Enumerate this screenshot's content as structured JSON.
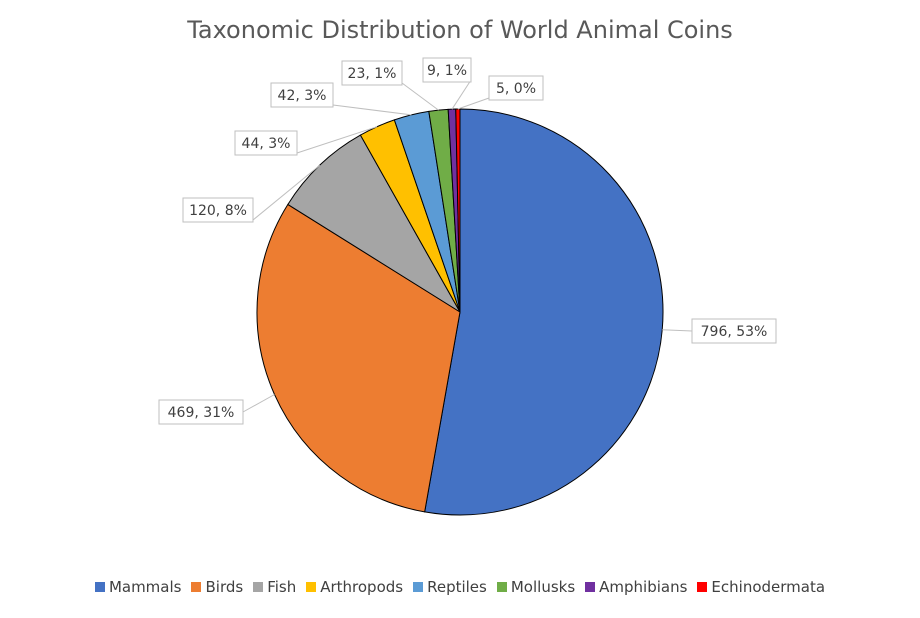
{
  "chart_data": {
    "type": "pie",
    "title": "Taxonomic Distribution of World Animal Coins",
    "legend_position": "bottom",
    "slices": [
      {
        "label": "Mammals",
        "value": 796,
        "percent": "53%",
        "color": "#4472C4"
      },
      {
        "label": "Birds",
        "value": 469,
        "percent": "31%",
        "color": "#ED7D31"
      },
      {
        "label": "Fish",
        "value": 120,
        "percent": "8%",
        "color": "#A5A5A5"
      },
      {
        "label": "Arthropods",
        "value": 44,
        "percent": "3%",
        "color": "#FFC000"
      },
      {
        "label": "Reptiles",
        "value": 42,
        "percent": "3%",
        "color": "#5B9BD5"
      },
      {
        "label": "Mollusks",
        "value": 23,
        "percent": "1%",
        "color": "#70AD47"
      },
      {
        "label": "Amphibians",
        "value": 9,
        "percent": "1%",
        "color": "#7030A0"
      },
      {
        "label": "Echinodermata",
        "value": 5,
        "percent": "0%",
        "color": "#FF0000"
      }
    ]
  }
}
